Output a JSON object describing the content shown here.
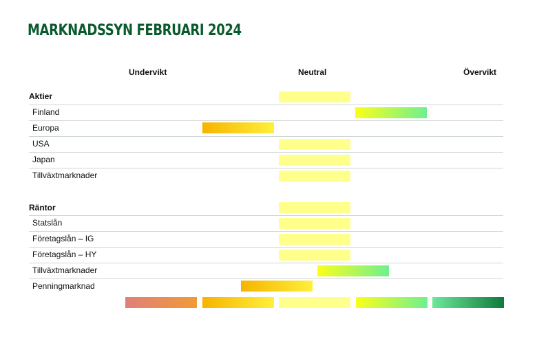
{
  "title": "MARKNADSSYN FEBRUARI 2024",
  "scale_labels": {
    "left": "Undervikt",
    "center": "Neutral",
    "right": "Övervikt"
  },
  "chart_data": {
    "type": "table",
    "title": "MARKNADSSYN FEBRUARI 2024",
    "scale": [
      "Undervikt",
      "Neutral",
      "Övervikt"
    ],
    "scale_positions": {
      "Undervikt": -2,
      "Neutral": 0,
      "Övervikt": 2
    },
    "sections": [
      {
        "name": "Aktier",
        "value": 0,
        "rows": [
          {
            "label": "Finland",
            "value": 1
          },
          {
            "label": "Europa",
            "value": -1
          },
          {
            "label": "USA",
            "value": 0
          },
          {
            "label": "Japan",
            "value": 0
          },
          {
            "label": "Tillväxtmarknader",
            "value": 0
          }
        ]
      },
      {
        "name": "Räntor",
        "value": 0,
        "rows": [
          {
            "label": "Statslån",
            "value": 0
          },
          {
            "label": "Företagslån – IG",
            "value": 0
          },
          {
            "label": "Företagslån – HY",
            "value": 0
          },
          {
            "label": "Tillväxtmarknader",
            "value": 0.5
          },
          {
            "label": "Penningmarknad",
            "value": -0.5
          }
        ]
      }
    ],
    "legend_levels": [
      -2,
      -1,
      0,
      1,
      2
    ],
    "colors": {
      "-2": [
        "#e08079",
        "#f19a36"
      ],
      "-1": [
        "#f6b400",
        "#ffef3c"
      ],
      "0": [
        "#ffff8c",
        "#ffff8c"
      ],
      "1": [
        "#fbff1a",
        "#6ef08f"
      ],
      "2": [
        "#6ee89a",
        "#0f7a3d"
      ]
    }
  }
}
